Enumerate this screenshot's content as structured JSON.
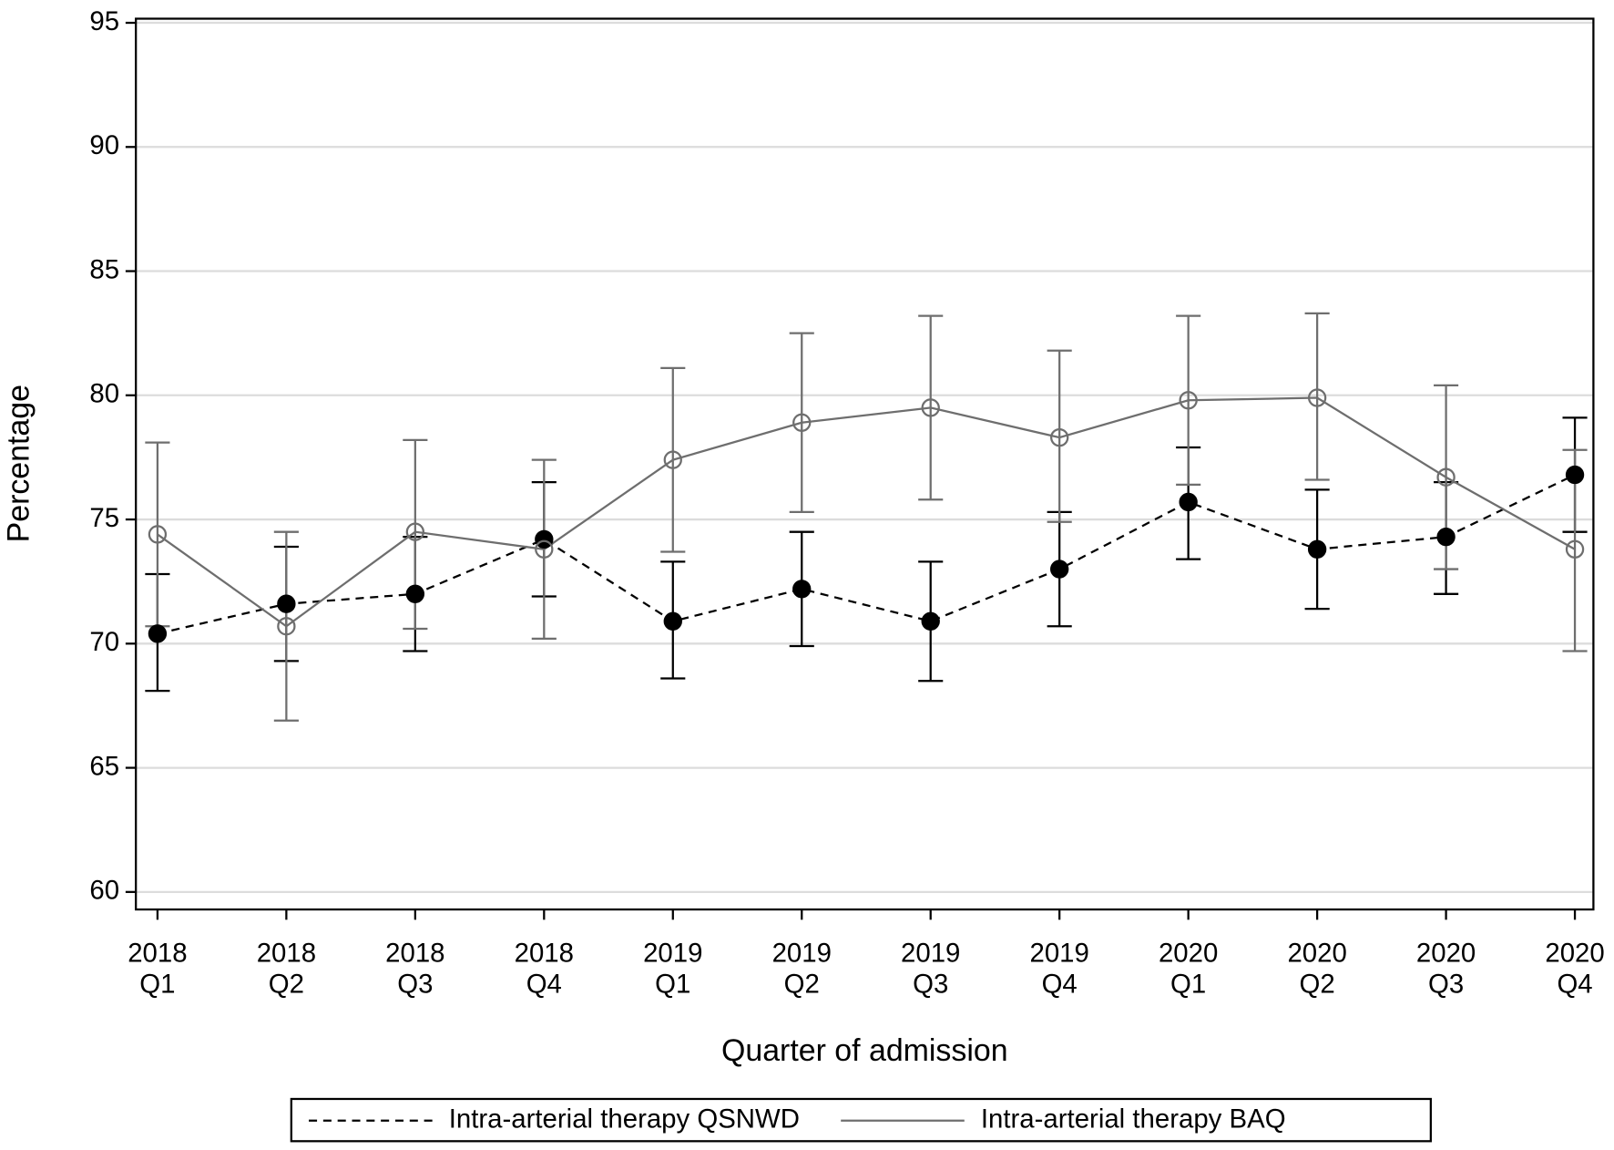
{
  "chart_data": {
    "type": "line-errorbar",
    "x_label": "Quarter of admission",
    "y_label": "Percentage",
    "categories": [
      [
        "2018",
        "Q1"
      ],
      [
        "2018",
        "Q2"
      ],
      [
        "2018",
        "Q3"
      ],
      [
        "2018",
        "Q4"
      ],
      [
        "2019",
        "Q1"
      ],
      [
        "2019",
        "Q2"
      ],
      [
        "2019",
        "Q3"
      ],
      [
        "2019",
        "Q4"
      ],
      [
        "2020",
        "Q1"
      ],
      [
        "2020",
        "Q2"
      ],
      [
        "2020",
        "Q3"
      ],
      [
        "2020",
        "Q4"
      ]
    ],
    "ylim": [
      60,
      95
    ],
    "yticks": [
      60,
      65,
      70,
      75,
      80,
      85,
      90,
      95
    ],
    "grid": true,
    "legend": "bottom",
    "series": [
      {
        "name": "Intra-arterial therapy QSNWD",
        "color": "#000000",
        "line_style": "dashed",
        "marker": "filled",
        "values": [
          70.4,
          71.6,
          72.0,
          74.2,
          70.9,
          72.2,
          70.9,
          73.0,
          75.7,
          73.8,
          74.3,
          76.8
        ],
        "lower": [
          68.1,
          69.3,
          69.7,
          71.9,
          68.6,
          69.9,
          68.5,
          70.7,
          73.4,
          71.4,
          72.0,
          74.5
        ],
        "upper": [
          72.8,
          73.9,
          74.3,
          76.5,
          73.3,
          74.5,
          73.3,
          75.3,
          77.9,
          76.2,
          76.5,
          79.1
        ]
      },
      {
        "name": "Intra-arterial therapy BAQ",
        "color": "#6e6e6e",
        "line_style": "solid",
        "marker": "open",
        "values": [
          74.4,
          70.7,
          74.5,
          73.8,
          77.4,
          78.9,
          79.5,
          78.3,
          79.8,
          79.9,
          76.7,
          73.8
        ],
        "lower": [
          70.7,
          66.9,
          70.6,
          70.2,
          73.7,
          75.3,
          75.8,
          74.9,
          76.4,
          76.6,
          73.0,
          69.7
        ],
        "upper": [
          78.1,
          74.5,
          78.2,
          77.4,
          81.1,
          82.5,
          83.2,
          81.8,
          83.2,
          83.3,
          80.4,
          77.8
        ]
      }
    ]
  }
}
